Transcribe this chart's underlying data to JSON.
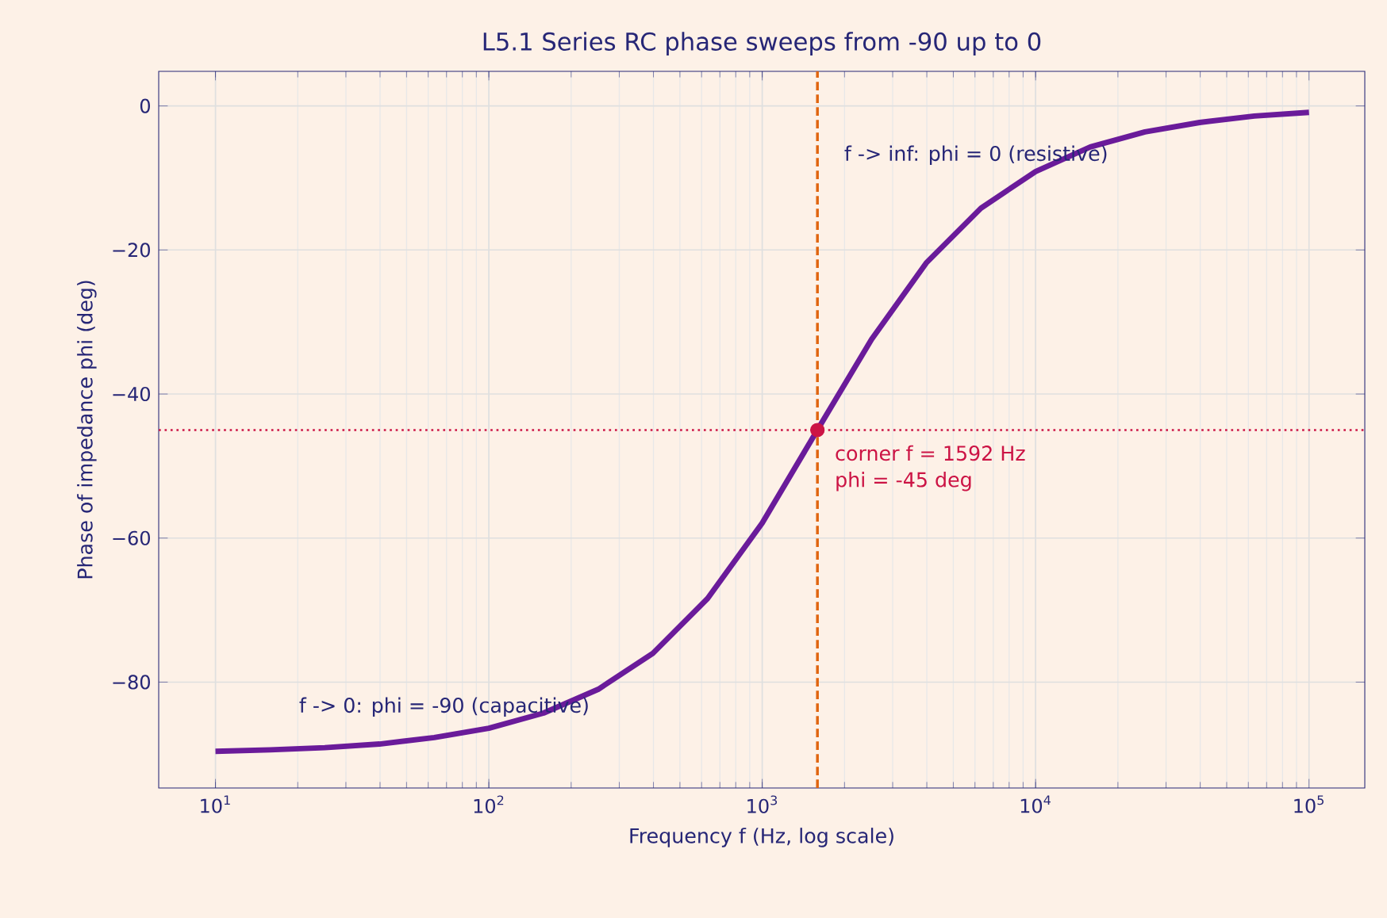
{
  "chart_data": {
    "type": "line",
    "title": "L5.1 Series RC phase sweeps from -90 up to 0",
    "xlabel": "Frequency f (Hz, log scale)",
    "ylabel": "Phase of impedance phi (deg)",
    "log": "x",
    "grid": true,
    "line_style": "solid",
    "xlim": [
      6.2,
      160000
    ],
    "ylim": [
      -94.7,
      4.8
    ],
    "xticks": [
      {
        "value": 10,
        "label": "10$^{1}$"
      },
      {
        "value": 100,
        "label": "10$^{2}$"
      },
      {
        "value": 1000,
        "label": "10$^{3}$"
      },
      {
        "value": 10000,
        "label": "10$^{4}$"
      },
      {
        "value": 100000,
        "label": "10$^{5}$"
      }
    ],
    "yticks": [
      {
        "value": 0,
        "label": "0"
      },
      {
        "value": -20,
        "label": "−20"
      },
      {
        "value": -40,
        "label": "−40"
      },
      {
        "value": -60,
        "label": "−60"
      },
      {
        "value": -80,
        "label": "−80"
      }
    ],
    "series": [
      {
        "color": "#6a1b9a",
        "x": [
          10,
          15.85,
          25.12,
          39.81,
          63.1,
          100,
          158.5,
          251.2,
          398.1,
          631,
          1000,
          1585,
          2512,
          3981,
          6310,
          10000,
          15850,
          25120,
          39810,
          63100,
          100000
        ],
        "values": [
          -89.6,
          -89.4,
          -89.1,
          -88.6,
          -87.7,
          -86.4,
          -84.3,
          -81.0,
          -76.0,
          -68.4,
          -57.9,
          -45.1,
          -32.4,
          -21.8,
          -14.2,
          -9.1,
          -5.7,
          -3.6,
          -2.3,
          -1.4,
          -0.9
        ]
      },
      {
        "type": "scatter",
        "color": "#cc1445",
        "x": [
          1592
        ],
        "values": [
          -45
        ]
      }
    ],
    "ref_lines": [
      {
        "axis": "x",
        "value": 1592,
        "color": "#e0650f",
        "line_style": "dashed"
      },
      {
        "axis": "y",
        "value": -45,
        "color": "#cc1445",
        "line_style": "dotted"
      }
    ],
    "annotations": [
      "f -> inf: phi = 0 (resistive)",
      "f -> 0: phi = -90 (capacitive)",
      {
        "text": "corner f = 1592 Hz",
        "x": 1592,
        "y": -45
      },
      {
        "text": "phi = -45 deg",
        "x": 1592,
        "y": -45
      }
    ]
  }
}
